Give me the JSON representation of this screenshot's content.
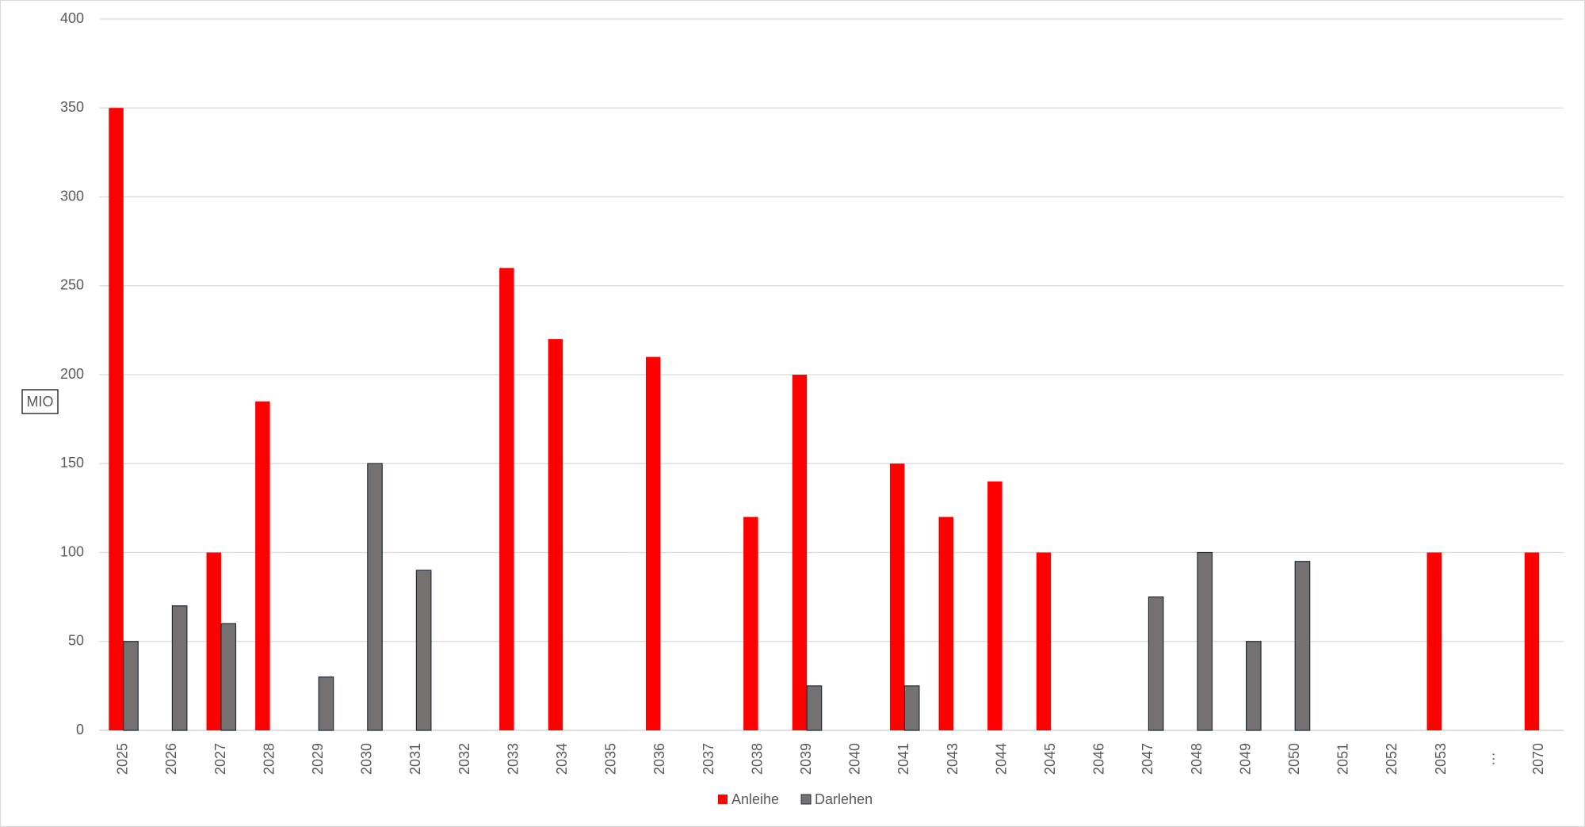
{
  "chart_data": {
    "type": "bar",
    "y_axis_title": "MIO",
    "categories": [
      "2025",
      "2026",
      "2027",
      "2028",
      "2029",
      "2030",
      "2031",
      "2032",
      "2033",
      "2034",
      "2035",
      "2036",
      "2037",
      "2038",
      "2039",
      "2040",
      "2041",
      "2043",
      "2044",
      "2045",
      "2046",
      "2047",
      "2048",
      "2049",
      "2050",
      "2051",
      "2052",
      "2053",
      "…",
      "2070"
    ],
    "series": [
      {
        "name": "Anleihe",
        "color": "#ff0000",
        "values": [
          350,
          null,
          100,
          185,
          null,
          null,
          null,
          null,
          260,
          220,
          null,
          210,
          null,
          120,
          200,
          null,
          150,
          120,
          140,
          100,
          null,
          null,
          null,
          null,
          null,
          null,
          null,
          100,
          null,
          100
        ]
      },
      {
        "name": "Darlehen",
        "color": "#767171",
        "values": [
          50,
          70,
          60,
          null,
          30,
          150,
          90,
          null,
          null,
          null,
          null,
          null,
          null,
          null,
          25,
          null,
          25,
          null,
          null,
          null,
          null,
          75,
          100,
          50,
          95,
          null,
          null,
          null,
          null,
          null
        ]
      }
    ],
    "ylim": [
      0,
      400
    ],
    "yticks": [
      0,
      50,
      100,
      150,
      200,
      250,
      300,
      350,
      400
    ],
    "grid": true,
    "legend": "bottom"
  }
}
